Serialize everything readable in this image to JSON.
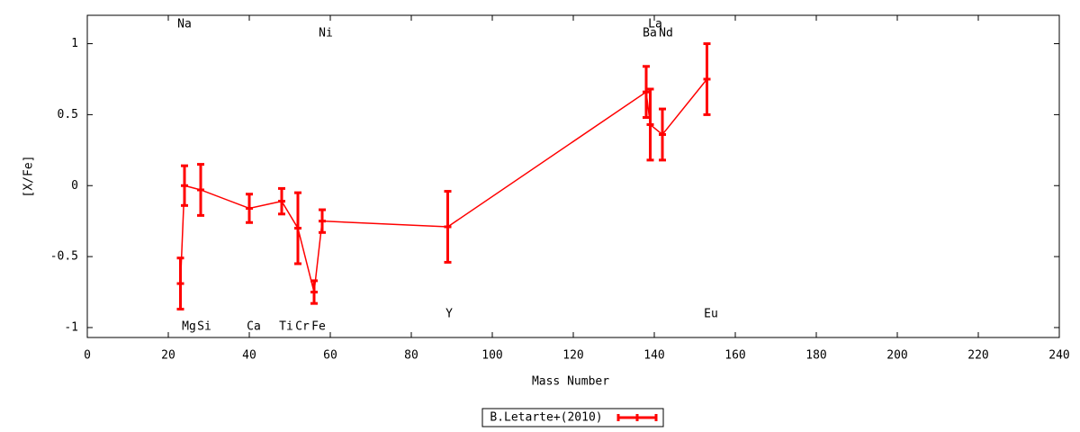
{
  "chart_data": {
    "type": "errorbar",
    "xlabel": "Mass Number",
    "ylabel": "[X/Fe]",
    "xlim": [
      0,
      240
    ],
    "ylim": [
      -1.07,
      1.2
    ],
    "xticks": [
      0,
      20,
      40,
      60,
      80,
      100,
      120,
      140,
      160,
      180,
      200,
      220,
      240
    ],
    "yticks": [
      1,
      0.5,
      0,
      -0.5,
      -1
    ],
    "grid": false,
    "legend": "below",
    "series": [
      {
        "name": "B.Letarte+(2010)",
        "color": "#ff0000",
        "x": [
          23,
          24,
          28,
          40,
          48,
          52,
          56,
          58,
          89,
          138,
          139,
          142,
          153
        ],
        "values": [
          -0.69,
          0.0,
          -0.03,
          -0.16,
          -0.11,
          -0.3,
          -0.75,
          -0.25,
          -0.29,
          0.66,
          0.43,
          0.36,
          0.75
        ],
        "errors": [
          0.18,
          0.14,
          0.18,
          0.1,
          0.09,
          0.25,
          0.08,
          0.08,
          0.25,
          0.18,
          0.25,
          0.18,
          0.25
        ]
      }
    ],
    "annotations": [
      "Na",
      "Mg",
      "Si",
      "Ca",
      "Ti",
      "Cr",
      "Fe",
      "Ni",
      "Y",
      "Ba",
      "La",
      "Nd",
      "Eu"
    ]
  }
}
